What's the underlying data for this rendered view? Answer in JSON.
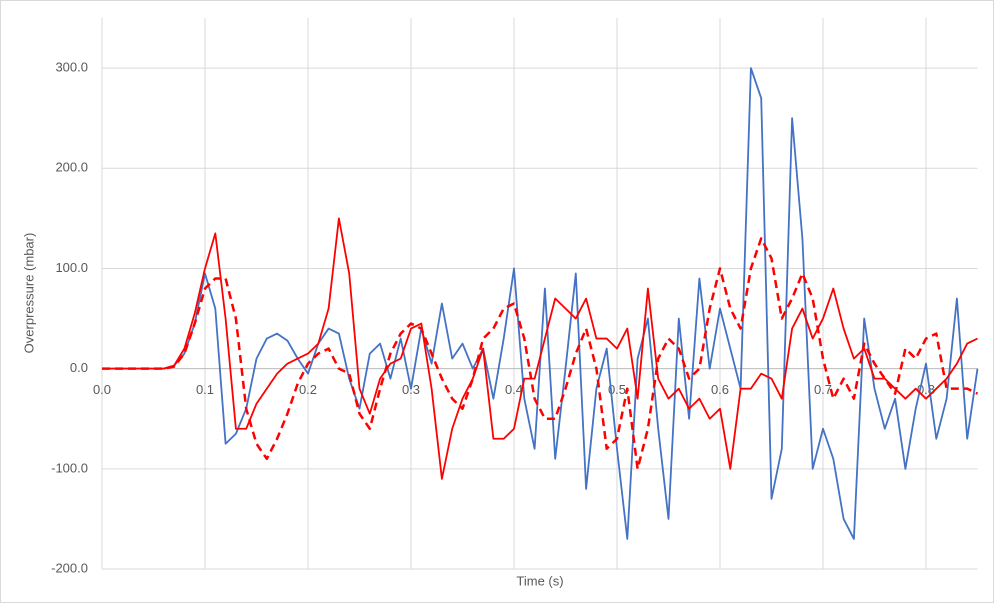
{
  "chart_data": {
    "type": "line",
    "x_label": "Time (s)",
    "y_label": "Overpressure (mbar)",
    "x": [
      0,
      0.01,
      0.02,
      0.03,
      0.04,
      0.05,
      0.06,
      0.07,
      0.08,
      0.09,
      0.1,
      0.11,
      0.12,
      0.13,
      0.14,
      0.15,
      0.16,
      0.17,
      0.18,
      0.19,
      0.2,
      0.21,
      0.22,
      0.23,
      0.24,
      0.25,
      0.26,
      0.27,
      0.28,
      0.29,
      0.3,
      0.31,
      0.32,
      0.33,
      0.34,
      0.35,
      0.36,
      0.37,
      0.38,
      0.39,
      0.4,
      0.41,
      0.42,
      0.43,
      0.44,
      0.45,
      0.46,
      0.47,
      0.48,
      0.49,
      0.5,
      0.51,
      0.52,
      0.53,
      0.54,
      0.55,
      0.56,
      0.57,
      0.58,
      0.59,
      0.6,
      0.61,
      0.62,
      0.63,
      0.64,
      0.65,
      0.66,
      0.67,
      0.68,
      0.69,
      0.7,
      0.71,
      0.72,
      0.73,
      0.74,
      0.75,
      0.76,
      0.77,
      0.78,
      0.79,
      0.8,
      0.81,
      0.82,
      0.83,
      0.84,
      0.85
    ],
    "series": [
      {
        "color": "#4472c4",
        "dashed": false,
        "values": [
          0,
          0,
          0,
          0,
          0,
          0,
          0,
          3,
          15,
          45,
          95,
          60,
          -75,
          -65,
          -40,
          10,
          30,
          35,
          28,
          10,
          -5,
          25,
          40,
          35,
          -10,
          -40,
          15,
          25,
          -10,
          30,
          -20,
          40,
          5,
          65,
          10,
          25,
          0,
          20,
          -30,
          30,
          100,
          -30,
          -80,
          80,
          -90,
          0,
          95,
          -120,
          -20,
          20,
          -80,
          -170,
          10,
          50,
          -60,
          -150,
          50,
          -50,
          90,
          0,
          60,
          20,
          -20,
          300,
          270,
          -130,
          -80,
          250,
          130,
          -100,
          -60,
          -90,
          -150,
          -170,
          50,
          -20,
          -60,
          -30,
          -100,
          -40,
          5,
          -70,
          -30,
          70,
          -70,
          0
        ]
      },
      {
        "color": "#ff0000",
        "dashed": false,
        "values": [
          0,
          0,
          0,
          0,
          0,
          0,
          0,
          3,
          20,
          55,
          100,
          135,
          50,
          -60,
          -60,
          -35,
          -20,
          -5,
          5,
          10,
          15,
          25,
          60,
          150,
          95,
          -20,
          -45,
          -10,
          5,
          10,
          40,
          45,
          -20,
          -110,
          -60,
          -30,
          -10,
          20,
          -70,
          -70,
          -60,
          -10,
          -10,
          30,
          70,
          60,
          50,
          70,
          30,
          30,
          20,
          40,
          -30,
          80,
          -10,
          -30,
          -20,
          -40,
          -30,
          -50,
          -40,
          -100,
          -20,
          -20,
          -5,
          -10,
          -30,
          40,
          60,
          30,
          50,
          80,
          40,
          10,
          20,
          -10,
          -10,
          -20,
          -30,
          -20,
          -30,
          -20,
          -10,
          5,
          25,
          30
        ]
      },
      {
        "color": "#ff0000",
        "dashed": true,
        "values": [
          0,
          0,
          0,
          0,
          0,
          0,
          0,
          2,
          15,
          45,
          80,
          90,
          90,
          50,
          -40,
          -75,
          -90,
          -70,
          -45,
          -15,
          5,
          15,
          20,
          0,
          -5,
          -45,
          -60,
          -20,
          15,
          35,
          45,
          40,
          15,
          -10,
          -30,
          -40,
          -10,
          30,
          40,
          60,
          65,
          30,
          -30,
          -50,
          -50,
          -20,
          15,
          40,
          0,
          -80,
          -70,
          -20,
          -100,
          -60,
          10,
          30,
          20,
          -10,
          0,
          60,
          100,
          60,
          40,
          100,
          130,
          110,
          50,
          70,
          95,
          70,
          10,
          -30,
          -10,
          -30,
          25,
          5,
          -10,
          -25,
          20,
          10,
          30,
          35,
          -20,
          -20,
          -20,
          -25
        ]
      }
    ],
    "xlim": [
      0,
      0.85
    ],
    "xticks": [
      {
        "value": 0,
        "label": "0.0"
      },
      {
        "value": 0.1,
        "label": "0.1"
      },
      {
        "value": 0.2,
        "label": "0.2"
      },
      {
        "value": 0.3,
        "label": "0.3"
      },
      {
        "value": 0.4,
        "label": "0.4"
      },
      {
        "value": 0.5,
        "label": "0.5"
      },
      {
        "value": 0.6,
        "label": "0.6"
      },
      {
        "value": 0.7,
        "label": "0.7"
      },
      {
        "value": 0.8,
        "label": "0.8"
      }
    ],
    "ylim": [
      -200,
      350
    ],
    "yticks": [
      {
        "value": -200,
        "label": "-200.0"
      },
      {
        "value": -100,
        "label": "-100.0"
      },
      {
        "value": 0,
        "label": "0.0"
      },
      {
        "value": 100,
        "label": "100.0"
      },
      {
        "value": 200,
        "label": "200.0"
      },
      {
        "value": 300,
        "label": "300.0"
      }
    ],
    "grid": true
  }
}
